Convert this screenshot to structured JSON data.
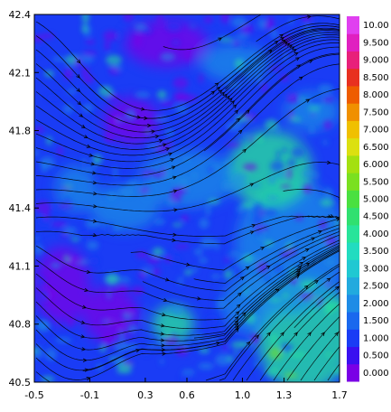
{
  "chart_data": {
    "type": "heatmap",
    "title": "",
    "xlabel": "",
    "ylabel": "",
    "xlim": [
      -0.5,
      1.7
    ],
    "ylim": [
      40.5,
      42.4
    ],
    "x_ticks": [
      "-0.5",
      "-0.1",
      "0.3",
      "0.6",
      "1.0",
      "1.3",
      "1.7"
    ],
    "x_tick_values": [
      -0.5,
      -0.1,
      0.3,
      0.6,
      1.0,
      1.3,
      1.7
    ],
    "y_ticks": [
      "40.5",
      "40.8",
      "41.1",
      "41.4",
      "41.8",
      "42.1",
      "42.4"
    ],
    "y_tick_values": [
      40.5,
      40.8,
      41.1,
      41.4,
      41.8,
      42.1,
      42.4
    ],
    "overlay": "streamlines",
    "colorbar": {
      "levels": [
        "0.000",
        "0.500",
        "1.000",
        "1.500",
        "2.000",
        "2.500",
        "3.000",
        "3.500",
        "4.000",
        "4.500",
        "5.000",
        "5.500",
        "6.000",
        "6.500",
        "7.000",
        "7.500",
        "8.000",
        "8.500",
        "9.000",
        "9.500",
        "10.00"
      ],
      "colors": [
        "#7a00e6",
        "#3a10f0",
        "#1a3cf5",
        "#1a68ee",
        "#1e8ce6",
        "#22aade",
        "#20c8d2",
        "#22dcc0",
        "#28e49a",
        "#30e070",
        "#4ae040",
        "#7ae020",
        "#a4e010",
        "#dce010",
        "#f0c000",
        "#f09000",
        "#ee5c00",
        "#e83020",
        "#e8207a",
        "#e020c0",
        "#e040f0"
      ]
    },
    "field_colors": {
      "background": "#1a3cf5",
      "low": "#7a00e6",
      "mid": "#1e8ce6",
      "high": "#28e49a",
      "peak": "#7ae020"
    }
  }
}
